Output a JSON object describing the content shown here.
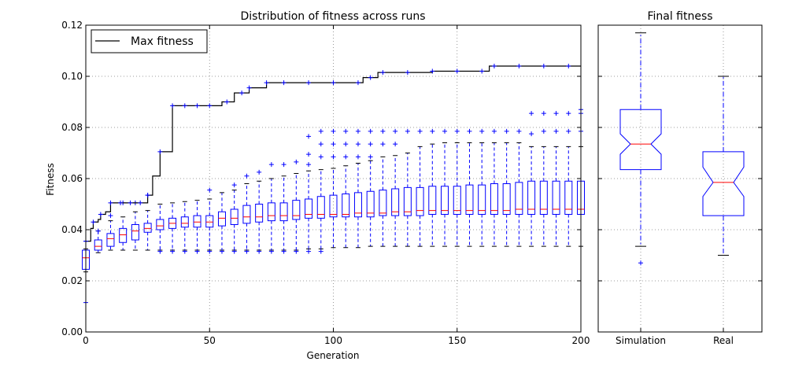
{
  "chart_data": [
    {
      "type": "box",
      "title": "Distribution of fitness across runs",
      "xlabel": "Generation",
      "ylabel": "Fitness",
      "xlim": [
        0,
        200
      ],
      "ylim": [
        0.0,
        0.12
      ],
      "xticks": [
        0,
        50,
        100,
        150,
        200
      ],
      "yticks": [
        "0.00",
        "0.02",
        "0.04",
        "0.06",
        "0.08",
        "0.10",
        "0.12"
      ],
      "grid": true,
      "legend": {
        "position": "top-left",
        "entries": [
          "Max fitness"
        ]
      },
      "colors": {
        "box": "#0000ff",
        "median": "#ff0000",
        "cap": "#000000",
        "line": "#000000",
        "flier": "#0000ff",
        "grid": "#7f7f7f"
      },
      "max_fitness": {
        "name": "Max fitness",
        "x": [
          0,
          2,
          3,
          5,
          6,
          8,
          10,
          11,
          14,
          15,
          18,
          20,
          22,
          24,
          25,
          27,
          30,
          33,
          35,
          38,
          40,
          44,
          45,
          48,
          50,
          55,
          57,
          60,
          63,
          65,
          66,
          70,
          73,
          75,
          80,
          85,
          90,
          95,
          100,
          105,
          110,
          112,
          115,
          118,
          120,
          125,
          130,
          135,
          140,
          145,
          150,
          155,
          160,
          163,
          165,
          170,
          175,
          180,
          185,
          190,
          195,
          200
        ],
        "y": [
          0.0355,
          0.0405,
          0.043,
          0.044,
          0.046,
          0.047,
          0.0505,
          0.0505,
          0.0505,
          0.0505,
          0.0505,
          0.0505,
          0.0505,
          0.0505,
          0.0535,
          0.061,
          0.0705,
          0.0705,
          0.0885,
          0.0885,
          0.0885,
          0.0885,
          0.0885,
          0.0885,
          0.0885,
          0.09,
          0.09,
          0.0935,
          0.0935,
          0.0935,
          0.0955,
          0.0955,
          0.0975,
          0.0975,
          0.0975,
          0.0975,
          0.0975,
          0.0975,
          0.0975,
          0.0975,
          0.0975,
          0.0995,
          0.0995,
          0.1015,
          0.1015,
          0.1015,
          0.1015,
          0.1015,
          0.102,
          0.102,
          0.102,
          0.102,
          0.102,
          0.104,
          0.104,
          0.104,
          0.104,
          0.104,
          0.104,
          0.104,
          0.104,
          0.104
        ]
      },
      "boxes": [
        {
          "x": 0,
          "q1": 0.0245,
          "median": 0.029,
          "q3": 0.032,
          "whislo": 0.0235,
          "whishi": 0.0325,
          "fliers": [
            0.0115,
            0.0355
          ]
        },
        {
          "x": 5,
          "q1": 0.032,
          "median": 0.0335,
          "q3": 0.036,
          "whislo": 0.031,
          "whishi": 0.0395,
          "fliers": [
            0.0395
          ]
        },
        {
          "x": 10,
          "q1": 0.0335,
          "median": 0.0365,
          "q3": 0.0385,
          "whislo": 0.032,
          "whishi": 0.0435,
          "fliers": [
            0.0455
          ]
        },
        {
          "x": 15,
          "q1": 0.035,
          "median": 0.038,
          "q3": 0.0405,
          "whislo": 0.032,
          "whishi": 0.045,
          "fliers": [
            0.0505
          ]
        },
        {
          "x": 20,
          "q1": 0.036,
          "median": 0.0395,
          "q3": 0.042,
          "whislo": 0.032,
          "whishi": 0.047,
          "fliers": [
            0.0505
          ]
        },
        {
          "x": 25,
          "q1": 0.039,
          "median": 0.0405,
          "q3": 0.0425,
          "whislo": 0.032,
          "whishi": 0.0475,
          "fliers": [
            0.0535
          ]
        },
        {
          "x": 30,
          "q1": 0.04,
          "median": 0.0415,
          "q3": 0.044,
          "whislo": 0.032,
          "whishi": 0.05,
          "fliers": [
            0.0315
          ]
        },
        {
          "x": 35,
          "q1": 0.0405,
          "median": 0.0425,
          "q3": 0.0445,
          "whislo": 0.032,
          "whishi": 0.0505,
          "fliers": [
            0.0315
          ]
        },
        {
          "x": 40,
          "q1": 0.041,
          "median": 0.0425,
          "q3": 0.045,
          "whislo": 0.032,
          "whishi": 0.051,
          "fliers": [
            0.0315
          ]
        },
        {
          "x": 45,
          "q1": 0.041,
          "median": 0.043,
          "q3": 0.0455,
          "whislo": 0.032,
          "whishi": 0.0515,
          "fliers": [
            0.0315
          ]
        },
        {
          "x": 50,
          "q1": 0.041,
          "median": 0.043,
          "q3": 0.0455,
          "whislo": 0.032,
          "whishi": 0.052,
          "fliers": [
            0.0315,
            0.0555
          ]
        },
        {
          "x": 55,
          "q1": 0.0415,
          "median": 0.0445,
          "q3": 0.047,
          "whislo": 0.032,
          "whishi": 0.0545,
          "fliers": [
            0.0315
          ]
        },
        {
          "x": 60,
          "q1": 0.042,
          "median": 0.0445,
          "q3": 0.048,
          "whislo": 0.032,
          "whishi": 0.0555,
          "fliers": [
            0.0315,
            0.0575
          ]
        },
        {
          "x": 65,
          "q1": 0.0425,
          "median": 0.045,
          "q3": 0.0495,
          "whislo": 0.032,
          "whishi": 0.058,
          "fliers": [
            0.0315,
            0.061
          ]
        },
        {
          "x": 70,
          "q1": 0.043,
          "median": 0.045,
          "q3": 0.05,
          "whislo": 0.032,
          "whishi": 0.059,
          "fliers": [
            0.0315,
            0.0625
          ]
        },
        {
          "x": 75,
          "q1": 0.0435,
          "median": 0.0455,
          "q3": 0.0505,
          "whislo": 0.032,
          "whishi": 0.06,
          "fliers": [
            0.0315,
            0.0655
          ]
        },
        {
          "x": 80,
          "q1": 0.0435,
          "median": 0.0455,
          "q3": 0.0505,
          "whislo": 0.032,
          "whishi": 0.061,
          "fliers": [
            0.0315,
            0.0655
          ]
        },
        {
          "x": 85,
          "q1": 0.044,
          "median": 0.0455,
          "q3": 0.0515,
          "whislo": 0.032,
          "whishi": 0.062,
          "fliers": [
            0.0315,
            0.0665
          ]
        },
        {
          "x": 90,
          "q1": 0.0445,
          "median": 0.046,
          "q3": 0.052,
          "whislo": 0.0325,
          "whishi": 0.063,
          "fliers": [
            0.0315,
            0.0655,
            0.0695,
            0.0765
          ]
        },
        {
          "x": 95,
          "q1": 0.0445,
          "median": 0.046,
          "q3": 0.053,
          "whislo": 0.0325,
          "whishi": 0.0635,
          "fliers": [
            0.0315,
            0.0685,
            0.0735,
            0.0785
          ]
        },
        {
          "x": 100,
          "q1": 0.045,
          "median": 0.046,
          "q3": 0.0535,
          "whislo": 0.033,
          "whishi": 0.064,
          "fliers": [
            0.0685,
            0.0735,
            0.0785
          ]
        },
        {
          "x": 105,
          "q1": 0.045,
          "median": 0.046,
          "q3": 0.054,
          "whislo": 0.033,
          "whishi": 0.065,
          "fliers": [
            0.0685,
            0.0735,
            0.0785
          ]
        },
        {
          "x": 110,
          "q1": 0.045,
          "median": 0.0465,
          "q3": 0.0545,
          "whislo": 0.033,
          "whishi": 0.066,
          "fliers": [
            0.0685,
            0.0735,
            0.0785
          ]
        },
        {
          "x": 115,
          "q1": 0.045,
          "median": 0.0465,
          "q3": 0.055,
          "whislo": 0.0335,
          "whishi": 0.067,
          "fliers": [
            0.0685,
            0.0735,
            0.0785
          ]
        },
        {
          "x": 120,
          "q1": 0.0455,
          "median": 0.0465,
          "q3": 0.0555,
          "whislo": 0.0335,
          "whishi": 0.0685,
          "fliers": [
            0.0735,
            0.0785
          ]
        },
        {
          "x": 125,
          "q1": 0.0455,
          "median": 0.047,
          "q3": 0.056,
          "whislo": 0.0335,
          "whishi": 0.069,
          "fliers": [
            0.0735,
            0.0785
          ]
        },
        {
          "x": 130,
          "q1": 0.0455,
          "median": 0.047,
          "q3": 0.0565,
          "whislo": 0.0335,
          "whishi": 0.07,
          "fliers": [
            0.0785
          ]
        },
        {
          "x": 135,
          "q1": 0.0455,
          "median": 0.0475,
          "q3": 0.0565,
          "whislo": 0.0335,
          "whishi": 0.0725,
          "fliers": [
            0.0785
          ]
        },
        {
          "x": 140,
          "q1": 0.046,
          "median": 0.0475,
          "q3": 0.057,
          "whislo": 0.0335,
          "whishi": 0.0735,
          "fliers": [
            0.0785
          ]
        },
        {
          "x": 145,
          "q1": 0.046,
          "median": 0.0475,
          "q3": 0.057,
          "whislo": 0.0335,
          "whishi": 0.074,
          "fliers": [
            0.0785
          ]
        },
        {
          "x": 150,
          "q1": 0.046,
          "median": 0.0475,
          "q3": 0.057,
          "whislo": 0.0335,
          "whishi": 0.074,
          "fliers": [
            0.0785
          ]
        },
        {
          "x": 155,
          "q1": 0.046,
          "median": 0.0475,
          "q3": 0.0575,
          "whislo": 0.0335,
          "whishi": 0.074,
          "fliers": [
            0.0785
          ]
        },
        {
          "x": 160,
          "q1": 0.046,
          "median": 0.0475,
          "q3": 0.0575,
          "whislo": 0.0335,
          "whishi": 0.074,
          "fliers": [
            0.0785
          ]
        },
        {
          "x": 165,
          "q1": 0.046,
          "median": 0.0475,
          "q3": 0.058,
          "whislo": 0.0335,
          "whishi": 0.074,
          "fliers": [
            0.0785
          ]
        },
        {
          "x": 170,
          "q1": 0.046,
          "median": 0.0475,
          "q3": 0.058,
          "whislo": 0.0335,
          "whishi": 0.074,
          "fliers": [
            0.0785
          ]
        },
        {
          "x": 175,
          "q1": 0.046,
          "median": 0.048,
          "q3": 0.0585,
          "whislo": 0.0335,
          "whishi": 0.074,
          "fliers": [
            0.0785
          ]
        },
        {
          "x": 180,
          "q1": 0.046,
          "median": 0.048,
          "q3": 0.059,
          "whislo": 0.0335,
          "whishi": 0.0725,
          "fliers": [
            0.0775,
            0.0855
          ]
        },
        {
          "x": 185,
          "q1": 0.046,
          "median": 0.048,
          "q3": 0.059,
          "whislo": 0.0335,
          "whishi": 0.0725,
          "fliers": [
            0.0785,
            0.0855
          ]
        },
        {
          "x": 190,
          "q1": 0.046,
          "median": 0.048,
          "q3": 0.059,
          "whislo": 0.0335,
          "whishi": 0.0725,
          "fliers": [
            0.0785,
            0.0855
          ]
        },
        {
          "x": 195,
          "q1": 0.046,
          "median": 0.048,
          "q3": 0.059,
          "whislo": 0.0335,
          "whishi": 0.0725,
          "fliers": [
            0.0785,
            0.0855
          ]
        },
        {
          "x": 200,
          "q1": 0.046,
          "median": 0.048,
          "q3": 0.059,
          "whislo": 0.0335,
          "whishi": 0.0725,
          "fliers": [
            0.0785,
            0.0855,
            0.087
          ]
        }
      ]
    },
    {
      "type": "box",
      "title": "Final fitness",
      "categories": [
        "Simulation",
        "Real"
      ],
      "ylim": [
        0.0,
        0.12
      ],
      "notched": true,
      "grid": true,
      "boxes": [
        {
          "name": "Simulation",
          "q1": 0.0635,
          "median": 0.0735,
          "q3": 0.087,
          "whislo": 0.0335,
          "whishi": 0.117,
          "notch_lo": 0.0695,
          "notch_hi": 0.0775,
          "fliers": [
            0.027
          ]
        },
        {
          "name": "Real",
          "q1": 0.0455,
          "median": 0.0585,
          "q3": 0.0705,
          "whislo": 0.03,
          "whishi": 0.1,
          "notch_lo": 0.053,
          "notch_hi": 0.0645,
          "fliers": []
        }
      ]
    }
  ]
}
